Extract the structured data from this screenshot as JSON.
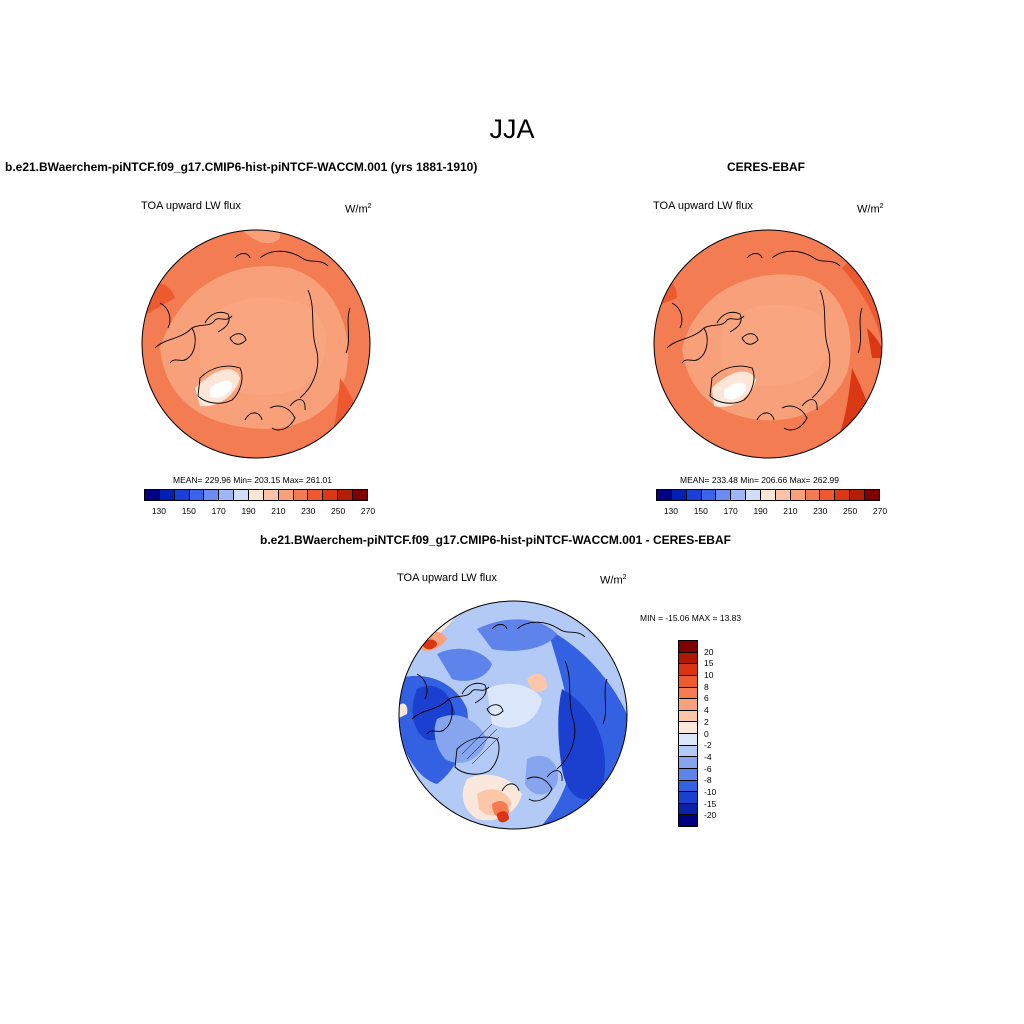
{
  "season": "JJA",
  "panels": {
    "model": {
      "title": "b.e21.BWaerchem-piNTCF.f09_g17.CMIP6-hist-piNTCF-WACCM.001 (yrs 1881-1910)",
      "variable": "TOA upward LW flux",
      "units_base": "W/m",
      "units_exp": "2",
      "stats": "MEAN= 229.96  Min= 203.15  Max= 261.01"
    },
    "obs": {
      "title": "CERES-EBAF",
      "variable": "TOA upward LW flux",
      "units_base": "W/m",
      "units_exp": "2",
      "stats": "MEAN= 233.48  Min= 206.66  Max= 262.99"
    },
    "diff": {
      "title": "b.e21.BWaerchem-piNTCF.f09_g17.CMIP6-hist-piNTCF-WACCM.001 - CERES-EBAF",
      "variable": "TOA upward LW flux",
      "units_base": "W/m",
      "units_exp": "2",
      "stats": "MIN = -15.06 MAX =  13.83"
    }
  },
  "colorbars": {
    "absolute": {
      "ticks": [
        "130",
        "150",
        "170",
        "190",
        "210",
        "230",
        "250",
        "270"
      ],
      "colors": [
        "#000080",
        "#0020b0",
        "#1a3fd6",
        "#3a63ea",
        "#6a8cf0",
        "#9db6f5",
        "#cfdcfa",
        "#fde6d8",
        "#fbc4a6",
        "#f7a07a",
        "#f47c52",
        "#ee5a30",
        "#da3815",
        "#b51e08",
        "#800000"
      ]
    },
    "difference": {
      "ticks": [
        "20",
        "15",
        "10",
        "8",
        "6",
        "4",
        "2",
        "0",
        "-2",
        "-4",
        "-6",
        "-8",
        "-10",
        "-15",
        "-20"
      ],
      "colors": [
        "#800000",
        "#b01804",
        "#da3512",
        "#ef5a2f",
        "#f47b52",
        "#f9a17c",
        "#fcc7a8",
        "#fbe8dc",
        "#dce7fb",
        "#b3c9f6",
        "#87a5ef",
        "#5e83ea",
        "#3461e2",
        "#1b40cf",
        "#0a22a6",
        "#000080"
      ]
    }
  }
}
